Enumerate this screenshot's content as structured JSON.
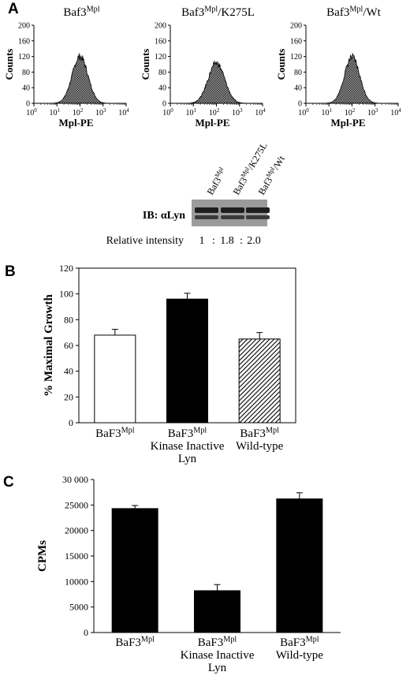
{
  "panels": {
    "a": "A",
    "b": "B",
    "c": "C"
  },
  "chart_data": [
    {
      "type": "histogram",
      "title_base": "Baf3",
      "title_sup": "Mpl",
      "title_suffix": "",
      "xlabel": "Mpl-PE",
      "ylabel": "Counts",
      "xscale": "log",
      "xlim": [
        1,
        10000
      ],
      "ylim": [
        0,
        200
      ],
      "yticks": [
        0,
        40,
        80,
        120,
        160,
        200
      ],
      "xticks_base": "10",
      "xticks_exp": [
        "0",
        "1",
        "2",
        "3",
        "4"
      ],
      "peak_log": 2.0,
      "peak_count": 120,
      "width_log": 0.34
    },
    {
      "type": "histogram",
      "title_base": "Baf3",
      "title_sup": "Mpl",
      "title_suffix": "/K275L",
      "xlabel": "Mpl-PE",
      "ylabel": "Counts",
      "xscale": "log",
      "xlim": [
        1,
        10000
      ],
      "ylim": [
        0,
        200
      ],
      "yticks": [
        0,
        40,
        80,
        120,
        160,
        200
      ],
      "xticks_base": "10",
      "xticks_exp": [
        "0",
        "1",
        "2",
        "3",
        "4"
      ],
      "peak_log": 2.0,
      "peak_count": 103,
      "width_log": 0.36
    },
    {
      "type": "histogram",
      "title_base": "Baf3",
      "title_sup": "Mpl",
      "title_suffix": "/Wt",
      "xlabel": "Mpl-PE",
      "ylabel": "Counts",
      "xscale": "log",
      "xlim": [
        1,
        10000
      ],
      "ylim": [
        0,
        200
      ],
      "yticks": [
        0,
        40,
        80,
        120,
        160,
        200
      ],
      "xticks_base": "10",
      "xticks_exp": [
        "0",
        "1",
        "2",
        "3",
        "4"
      ],
      "peak_log": 2.0,
      "peak_count": 118,
      "width_log": 0.33
    },
    {
      "type": "blot",
      "lanes": [
        {
          "base": "Baf3",
          "sup": "Mpl",
          "suffix": ""
        },
        {
          "base": "Baf3",
          "sup": "Mpl",
          "suffix": "/K275L"
        },
        {
          "base": "Baf3",
          "sup": "Mpl",
          "suffix": "/Wt"
        }
      ],
      "ib_label": "IB: αLyn",
      "relative_label": "Relative intensity",
      "relative_values": [
        "1",
        "1.8",
        "2.0"
      ],
      "separator": ":"
    },
    {
      "type": "bar",
      "categories": [
        {
          "base": "BaF3",
          "sup": "Mpl",
          "line2": "",
          "line3": ""
        },
        {
          "base": "BaF3",
          "sup": "Mpl",
          "line2": "Kinase Inactive",
          "line3": "Lyn"
        },
        {
          "base": "BaF3",
          "sup": "Mpl",
          "line2": "Wild-type",
          "line3": ""
        }
      ],
      "values": [
        68,
        96,
        65
      ],
      "errors": [
        4.5,
        4.5,
        5
      ],
      "fills": [
        "white",
        "black",
        "hatch"
      ],
      "ylabel": "% Maximal Growth",
      "ylim": [
        0,
        120
      ],
      "yticks": [
        0,
        20,
        40,
        60,
        80,
        100,
        120
      ]
    },
    {
      "type": "bar",
      "categories": [
        {
          "base": "BaF3",
          "sup": "Mpl",
          "line2": "",
          "line3": ""
        },
        {
          "base": "BaF3",
          "sup": "Mpl",
          "line2": "Kinase Inactive",
          "line3": "Lyn"
        },
        {
          "base": "BaF3",
          "sup": "Mpl",
          "line2": "Wild-type",
          "line3": ""
        }
      ],
      "values": [
        24300,
        8200,
        26200
      ],
      "errors": [
        600,
        1200,
        1200
      ],
      "fills": [
        "black",
        "black",
        "black"
      ],
      "ylabel": "CPMs",
      "ylim": [
        0,
        30000
      ],
      "yticks": [
        0,
        5000,
        10000,
        15000,
        20000,
        25000,
        30000
      ],
      "ytick_labels": [
        "0",
        "5000",
        "10000",
        "15000",
        "20000",
        "25000",
        "30 000"
      ]
    }
  ]
}
